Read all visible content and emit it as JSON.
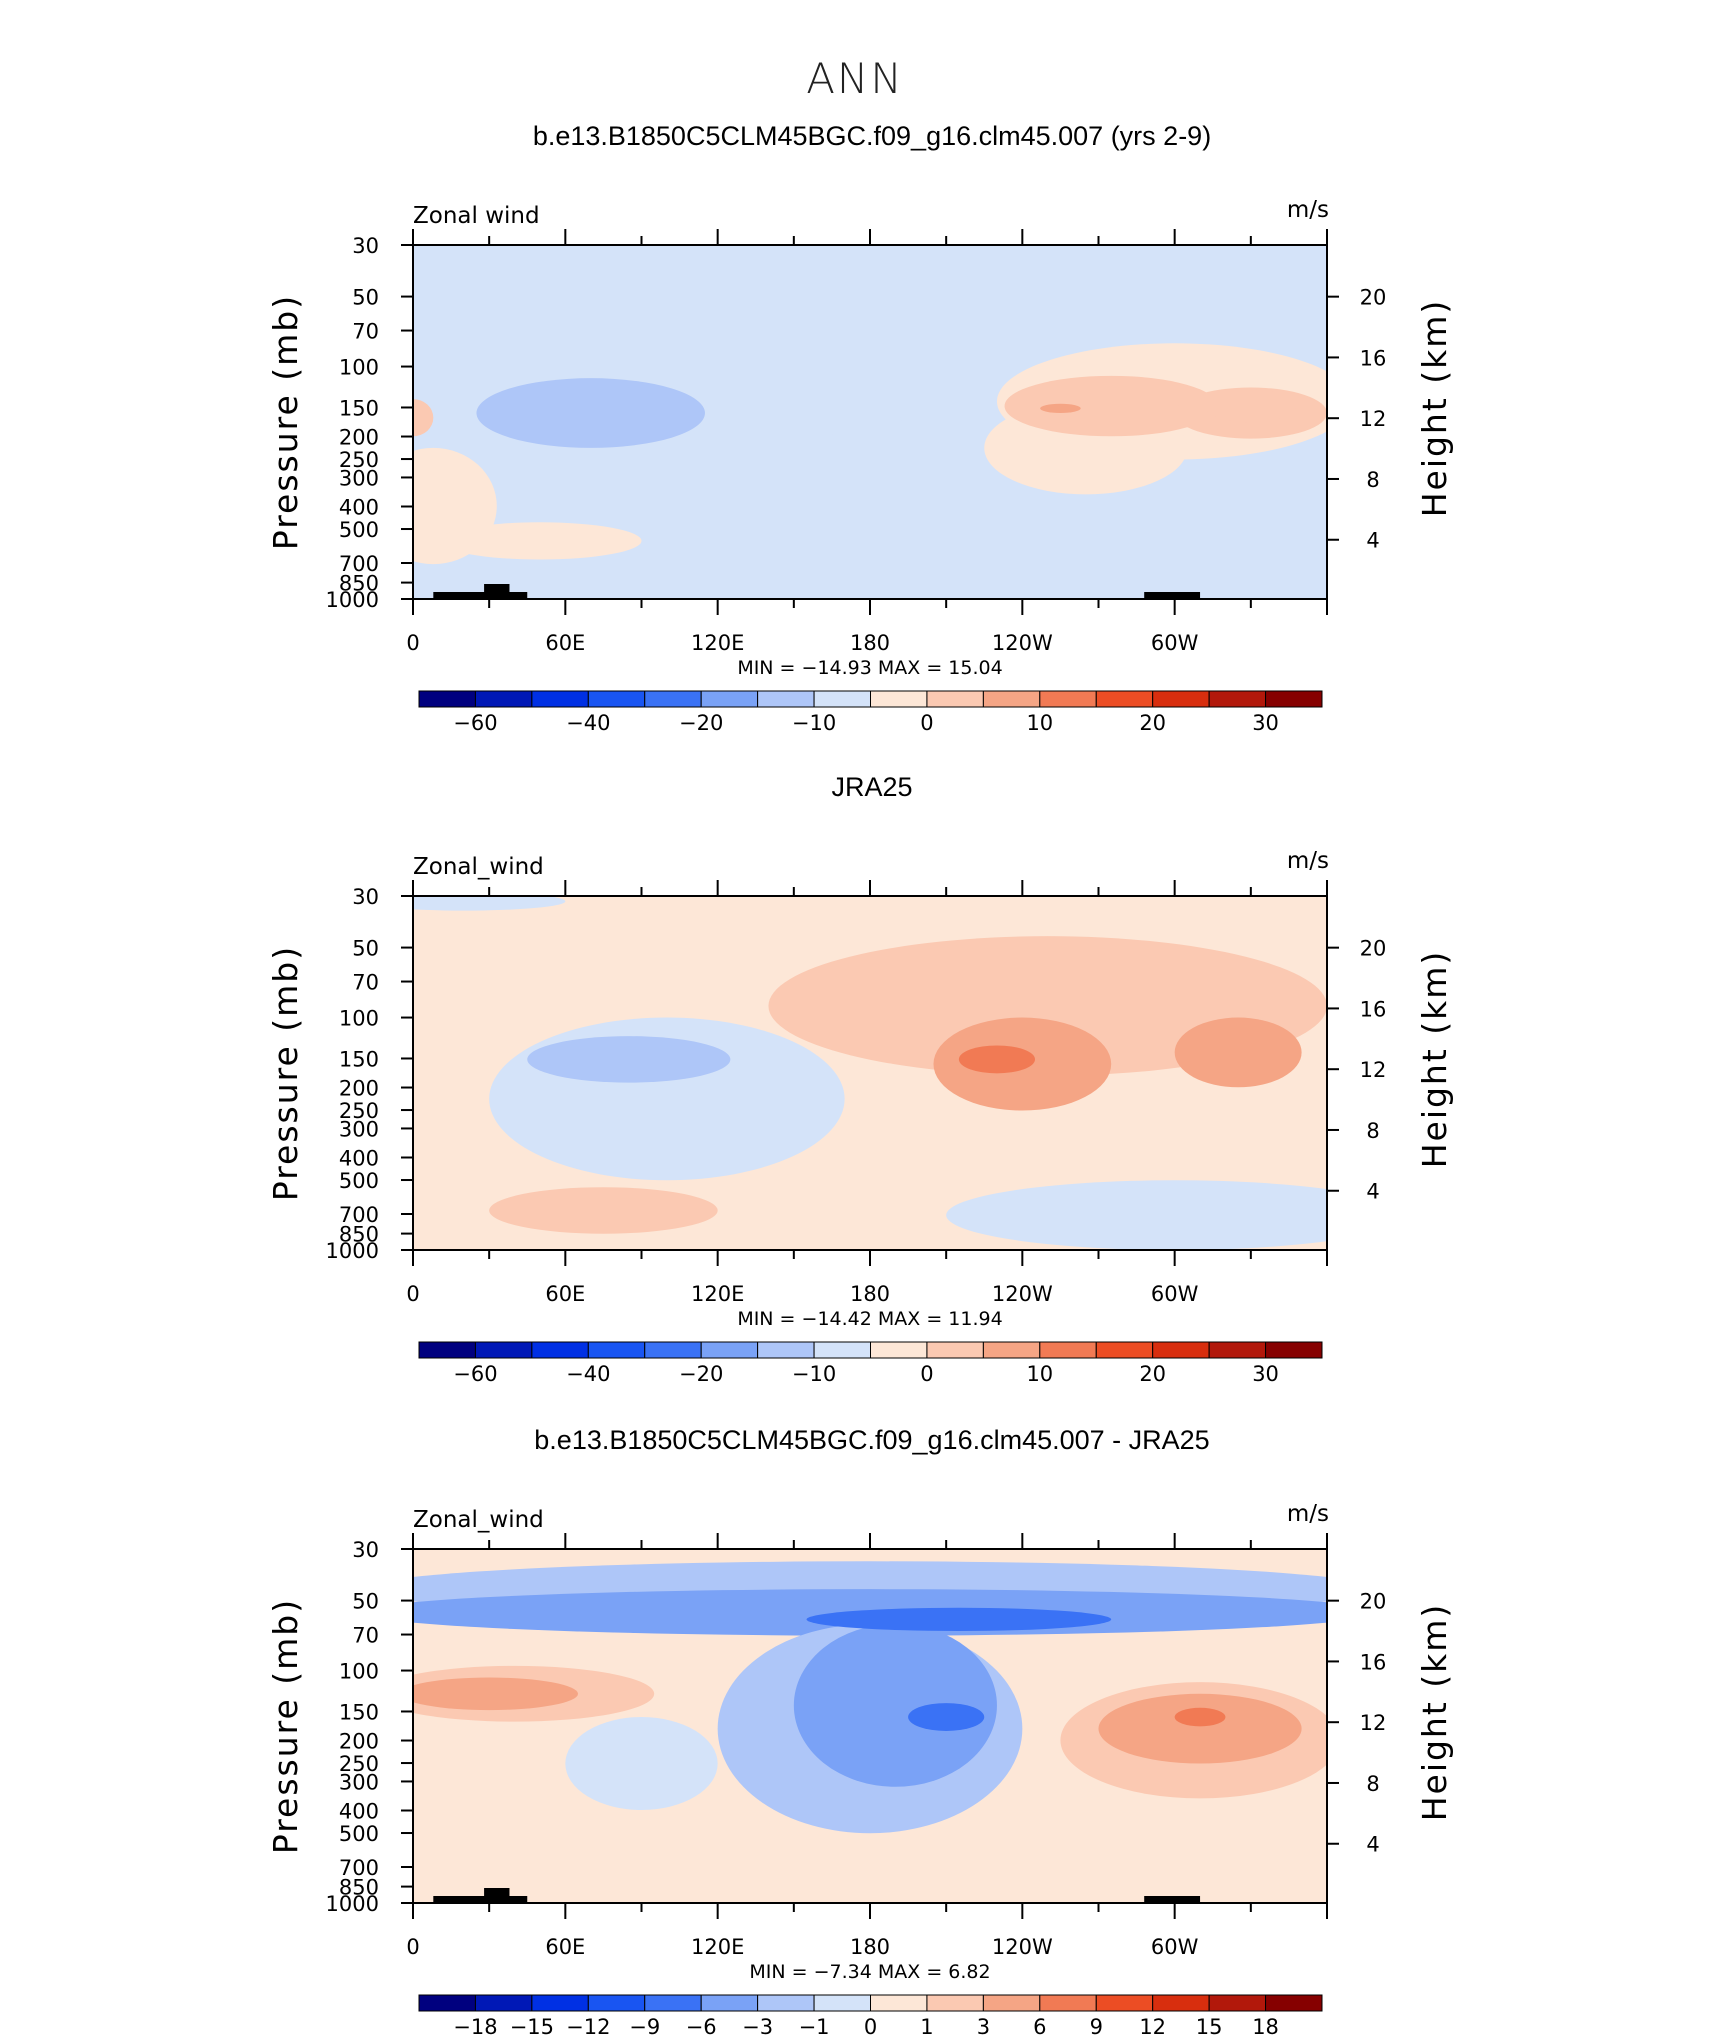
{
  "figure_title": "ANN",
  "colors": {
    "scale": [
      "#00007f",
      "#0018b6",
      "#0030e4",
      "#1955f2",
      "#3a72f5",
      "#7aa2f6",
      "#aec6f8",
      "#d4e3f9",
      "#fde7d7",
      "#fbc9b2",
      "#f5a585",
      "#f17a54",
      "#ec4d24",
      "#d82e0e",
      "#b2180b",
      "#860000"
    ],
    "land": "#000000"
  },
  "chart_data": [
    {
      "id": "model",
      "type": "heatmap",
      "title": "b.e13.B1850C5CLM45BGC.f09_g16.clm45.007 (yrs 2-9)",
      "left_label": "Zonal wind",
      "right_label": "m/s",
      "ylabel": "Pressure (mb)",
      "ylabel_right": "Height (km)",
      "x_ticks": [
        "0",
        "60E",
        "120E",
        "180",
        "120W",
        "60W"
      ],
      "y_ticks": [
        "30",
        "50",
        "70",
        "100",
        "150",
        "200",
        "250",
        "300",
        "400",
        "500",
        "700",
        "850",
        "1000"
      ],
      "y2_ticks": [
        "20",
        "16",
        "12",
        "8",
        "4"
      ],
      "stats": "MIN  =  −14.93   MAX  =    15.04",
      "min": -14.93,
      "max": 15.04,
      "colorbar_labels": [
        "−60",
        "−40",
        "−20",
        "−10",
        "0",
        "10",
        "20",
        "30"
      ],
      "background_level": 7,
      "blobs": [
        {
          "level": 7,
          "x": 180,
          "p": 2.7,
          "rx": 20,
          "rp": 0.6
        },
        {
          "level": 8,
          "x": 300,
          "p": 2.15,
          "rx": 70,
          "rp": 0.25
        },
        {
          "level": 8,
          "x": 265,
          "p": 2.35,
          "rx": 40,
          "rp": 0.2
        },
        {
          "level": 8,
          "x": 8,
          "p": 2.6,
          "rx": 25,
          "rp": 0.25
        },
        {
          "level": 6,
          "x": 70,
          "p": 2.2,
          "rx": 45,
          "rp": 0.15
        },
        {
          "level": 9,
          "x": 275,
          "p": 2.17,
          "rx": 42,
          "rp": 0.13
        },
        {
          "level": 9,
          "x": 330,
          "p": 2.2,
          "rx": 30,
          "rp": 0.11
        },
        {
          "level": 9,
          "x": 0,
          "p": 2.22,
          "rx": 8,
          "rp": 0.08
        },
        {
          "level": 8,
          "x": 50,
          "p": 2.75,
          "rx": 40,
          "rp": 0.08
        },
        {
          "level": 9,
          "x": 330,
          "p": 2.17,
          "rx": 18,
          "rp": 0.07
        },
        {
          "level": 10,
          "x": 255,
          "p": 2.18,
          "rx": 8,
          "rp": 0.02
        }
      ]
    },
    {
      "id": "obs",
      "type": "heatmap",
      "title": "JRA25",
      "left_label": "Zonal_wind",
      "right_label": "m/s",
      "ylabel": "Pressure (mb)",
      "ylabel_right": "Height (km)",
      "x_ticks": [
        "0",
        "60E",
        "120E",
        "180",
        "120W",
        "60W"
      ],
      "y_ticks": [
        "30",
        "50",
        "70",
        "100",
        "150",
        "200",
        "250",
        "300",
        "400",
        "500",
        "700",
        "850",
        "1000"
      ],
      "y2_ticks": [
        "20",
        "16",
        "12",
        "8",
        "4"
      ],
      "stats": "MIN  =  −14.42   MAX  =    11.94",
      "min": -14.42,
      "max": 11.94,
      "colorbar_labels": [
        "−60",
        "−40",
        "−20",
        "−10",
        "0",
        "10",
        "20",
        "30"
      ],
      "background_level": 8,
      "blobs": [
        {
          "level": 7,
          "x": 20,
          "p": 1.5,
          "rx": 40,
          "rp": 0.04
        },
        {
          "level": 9,
          "x": 250,
          "p": 1.95,
          "rx": 110,
          "rp": 0.3
        },
        {
          "level": 7,
          "x": 100,
          "p": 2.35,
          "rx": 70,
          "rp": 0.35
        },
        {
          "level": 6,
          "x": 85,
          "p": 2.18,
          "rx": 40,
          "rp": 0.1
        },
        {
          "level": 10,
          "x": 240,
          "p": 2.2,
          "rx": 35,
          "rp": 0.2
        },
        {
          "level": 10,
          "x": 325,
          "p": 2.15,
          "rx": 25,
          "rp": 0.15
        },
        {
          "level": 11,
          "x": 230,
          "p": 2.18,
          "rx": 15,
          "rp": 0.06
        },
        {
          "level": 7,
          "x": 300,
          "p": 2.85,
          "rx": 90,
          "rp": 0.15
        },
        {
          "level": 9,
          "x": 75,
          "p": 2.83,
          "rx": 45,
          "rp": 0.1
        }
      ]
    },
    {
      "id": "diff",
      "type": "heatmap",
      "title": "b.e13.B1850C5CLM45BGC.f09_g16.clm45.007 - JRA25",
      "left_label": "Zonal_wind",
      "right_label": "m/s",
      "ylabel": "Pressure (mb)",
      "ylabel_right": "Height (km)",
      "x_ticks": [
        "0",
        "60E",
        "120E",
        "180",
        "120W",
        "60W"
      ],
      "y_ticks": [
        "30",
        "50",
        "70",
        "100",
        "150",
        "200",
        "250",
        "300",
        "400",
        "500",
        "700",
        "850",
        "1000"
      ],
      "y2_ticks": [
        "20",
        "16",
        "12",
        "8",
        "4"
      ],
      "stats": "MIN  =    −7.34   MAX  =     6.82",
      "min": -7.34,
      "max": 6.82,
      "colorbar_labels": [
        "−18",
        "−15",
        "−12",
        "−9",
        "−6",
        "−3",
        "−1",
        "0",
        "1",
        "3",
        "6",
        "9",
        "12",
        "15",
        "18"
      ],
      "background_level": 8,
      "blobs": [
        {
          "level": 6,
          "x": 180,
          "p": 1.65,
          "rx": 200,
          "rp": 0.12
        },
        {
          "level": 5,
          "x": 180,
          "p": 1.75,
          "rx": 200,
          "rp": 0.1
        },
        {
          "level": 6,
          "x": 180,
          "p": 2.25,
          "rx": 60,
          "rp": 0.45
        },
        {
          "level": 5,
          "x": 190,
          "p": 2.15,
          "rx": 40,
          "rp": 0.35
        },
        {
          "level": 4,
          "x": 215,
          "p": 1.78,
          "rx": 60,
          "rp": 0.05
        },
        {
          "level": 4,
          "x": 210,
          "p": 2.2,
          "rx": 15,
          "rp": 0.06
        },
        {
          "level": 9,
          "x": 40,
          "p": 2.1,
          "rx": 55,
          "rp": 0.12
        },
        {
          "level": 10,
          "x": 30,
          "p": 2.1,
          "rx": 35,
          "rp": 0.07
        },
        {
          "level": 9,
          "x": 310,
          "p": 2.3,
          "rx": 55,
          "rp": 0.25
        },
        {
          "level": 10,
          "x": 310,
          "p": 2.25,
          "rx": 40,
          "rp": 0.15
        },
        {
          "level": 11,
          "x": 310,
          "p": 2.2,
          "rx": 10,
          "rp": 0.04
        },
        {
          "level": 7,
          "x": 90,
          "p": 2.4,
          "rx": 30,
          "rp": 0.2
        }
      ]
    }
  ]
}
